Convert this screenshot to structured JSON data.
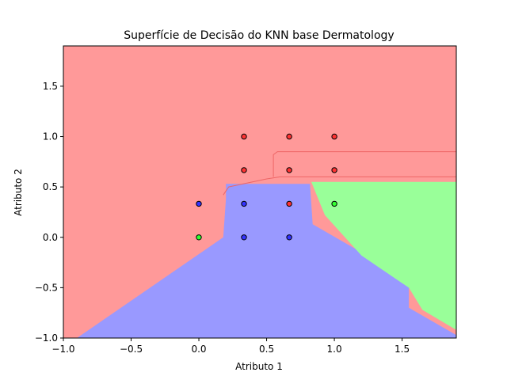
{
  "chart_data": {
    "type": "scatter",
    "title": "Superfície de Decisão do KNN base Dermatology",
    "xlabel": "Atributo 1",
    "ylabel": "Atributo 2",
    "xlim": [
      -1.0,
      1.9
    ],
    "ylim": [
      -1.0,
      1.9
    ],
    "xticks": [
      "−1.0",
      "−0.5",
      "0.0",
      "0.5",
      "1.0",
      "1.5"
    ],
    "xtick_values": [
      -1.0,
      -0.5,
      0.0,
      0.5,
      1.0,
      1.5
    ],
    "yticks": [
      "−1.0",
      "−0.5",
      "0.0",
      "0.5",
      "1.0",
      "1.5"
    ],
    "ytick_values": [
      -1.0,
      -0.5,
      0.0,
      0.5,
      1.0,
      1.5
    ],
    "grid": false,
    "colors": {
      "red_region": "#ff9999",
      "green_region": "#99ff99",
      "blue_region": "#9999ff",
      "red_point": "#ff3333",
      "green_point": "#33ff33",
      "blue_point": "#3333ff"
    },
    "regions": [
      {
        "class": "blue",
        "polygon": [
          [
            -0.9,
            -1.0
          ],
          [
            0.18,
            0.0
          ],
          [
            0.2,
            0.38
          ],
          [
            0.2,
            0.53
          ],
          [
            0.82,
            0.53
          ],
          [
            0.84,
            0.13
          ],
          [
            1.55,
            -0.42
          ],
          [
            1.55,
            -0.7
          ],
          [
            1.9,
            -0.97
          ],
          [
            1.9,
            -1.0
          ]
        ]
      },
      {
        "class": "green",
        "polygon": [
          [
            0.83,
            0.55
          ],
          [
            1.9,
            0.55
          ],
          [
            1.9,
            -0.92
          ],
          [
            1.65,
            -0.72
          ],
          [
            1.55,
            -0.5
          ],
          [
            1.2,
            -0.18
          ],
          [
            0.93,
            0.22
          ]
        ]
      }
    ],
    "series": [
      {
        "class": "red",
        "points": [
          [
            0.333,
            1.0
          ],
          [
            0.667,
            1.0
          ],
          [
            1.0,
            1.0
          ],
          [
            0.333,
            0.667
          ],
          [
            0.667,
            0.667
          ],
          [
            1.0,
            0.667
          ],
          [
            0.667,
            0.333
          ]
        ]
      },
      {
        "class": "blue",
        "points": [
          [
            0.0,
            0.333
          ],
          [
            0.333,
            0.333
          ],
          [
            0.333,
            0.0
          ],
          [
            0.667,
            0.0
          ]
        ]
      },
      {
        "class": "green",
        "points": [
          [
            0.0,
            0.0
          ],
          [
            1.0,
            0.333
          ]
        ]
      }
    ]
  }
}
